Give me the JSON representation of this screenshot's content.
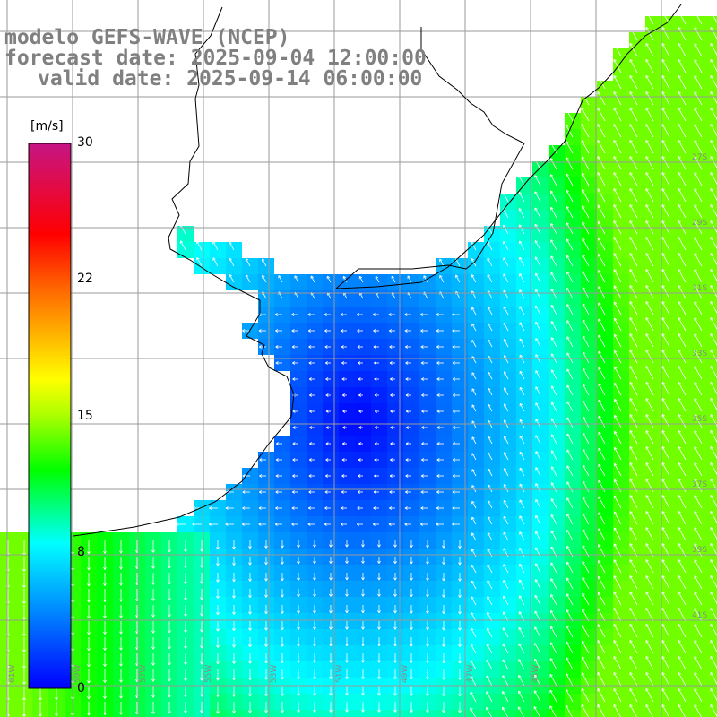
{
  "titles": {
    "model": "modelo GEFS-WAVE (NCEP)",
    "forecast": "forecast date: 2025-09-04 12:00:00",
    "valid": "valid date: 2025-09-14 06:00:00"
  },
  "colorbar": {
    "unit": "[m/s]",
    "ticks": [
      "30",
      "22",
      "15",
      "8",
      "0"
    ],
    "tick_values": [
      30,
      22,
      15,
      8,
      0
    ],
    "min": 0,
    "max": 30,
    "stops": [
      {
        "value": 0,
        "color": "#0000ff"
      },
      {
        "value": 8,
        "color": "#00ffff"
      },
      {
        "value": 12,
        "color": "#00ff00"
      },
      {
        "value": 15,
        "color": "#aaff00"
      },
      {
        "value": 17,
        "color": "#ffff00"
      },
      {
        "value": 22,
        "color": "#ff6600"
      },
      {
        "value": 25,
        "color": "#ff0000"
      },
      {
        "value": 30,
        "color": "#c71585"
      }
    ]
  },
  "map": {
    "field": "wind speed",
    "land_color": "#ffffff",
    "grid_color": "#9a9a9a",
    "arrow_color": "#ffffff",
    "coast_color": "#000000"
  },
  "grid_labels": {
    "longitudes": [
      "61W",
      "59W",
      "57W",
      "55W",
      "53W",
      "51W",
      "49W",
      "47W",
      "45W"
    ],
    "latitudes": [
      "27S",
      "29S",
      "31S",
      "33S",
      "35S",
      "37S",
      "39S",
      "41S"
    ]
  }
}
